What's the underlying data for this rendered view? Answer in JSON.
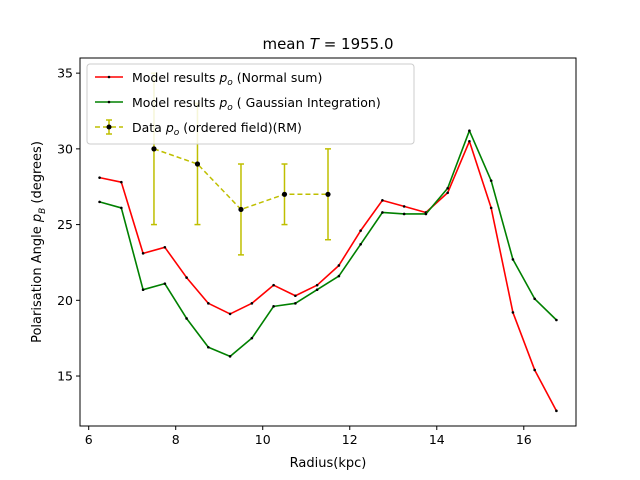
{
  "chart_data": {
    "type": "line",
    "title_prefix": "mean ",
    "title_var": "T",
    "title_suffix": " =  1955.0",
    "xlabel": "Radius(kpc)",
    "ylabel_prefix": "Polarisation Angle ",
    "ylabel_var": "p",
    "ylabel_sub": "B",
    "ylabel_suffix": " (degrees)",
    "xlim": [
      5.8,
      17.2
    ],
    "ylim": [
      11.7,
      36.0
    ],
    "xticks": [
      6,
      8,
      10,
      12,
      14,
      16
    ],
    "yticks": [
      15,
      20,
      25,
      30,
      35
    ],
    "grid": false,
    "legend_position": "upper-left",
    "series": [
      {
        "name": "Model results p_o (Normal sum)",
        "legend_prefix": "Model results ",
        "legend_var": "p",
        "legend_sub": "o",
        "legend_suffix": " (Normal sum)",
        "color": "#ff0000",
        "x": [
          6.25,
          6.75,
          7.25,
          7.75,
          8.25,
          8.75,
          9.25,
          9.75,
          10.25,
          10.75,
          11.25,
          11.75,
          12.25,
          12.75,
          13.25,
          13.75,
          14.25,
          14.75,
          15.25,
          15.75,
          16.25,
          16.75
        ],
        "y": [
          28.1,
          27.8,
          23.1,
          23.5,
          21.5,
          19.8,
          19.1,
          19.8,
          21.0,
          20.3,
          21.0,
          22.3,
          24.6,
          26.6,
          26.2,
          25.8,
          27.1,
          30.5,
          26.1,
          19.2,
          15.4,
          12.7
        ]
      },
      {
        "name": "Model results p_o ( Gaussian Integration)",
        "legend_prefix": "Model results ",
        "legend_var": "p",
        "legend_sub": "o",
        "legend_suffix": " ( Gaussian Integration)",
        "color": "#008000",
        "x": [
          6.25,
          6.75,
          7.25,
          7.75,
          8.25,
          8.75,
          9.25,
          9.75,
          10.25,
          10.75,
          11.25,
          11.75,
          12.25,
          12.75,
          13.25,
          13.75,
          14.25,
          14.75,
          15.25,
          15.75,
          16.25,
          16.75
        ],
        "y": [
          26.5,
          26.1,
          20.7,
          21.1,
          18.8,
          16.9,
          16.3,
          17.5,
          19.6,
          19.8,
          20.7,
          21.6,
          23.7,
          25.8,
          25.7,
          25.7,
          27.4,
          31.2,
          27.9,
          22.7,
          20.1,
          18.7
        ]
      }
    ],
    "errorbar_series": {
      "name": "Data p_o (ordered field)(RM)",
      "legend_prefix": "Data ",
      "legend_var": "p",
      "legend_sub": "o",
      "legend_suffix": " (ordered field)(RM)",
      "color": "#bfbf00",
      "x": [
        7.5,
        8.5,
        9.5,
        10.5,
        11.5
      ],
      "y": [
        30,
        29,
        26,
        27,
        27
      ],
      "lower": [
        25,
        25,
        23,
        25,
        24
      ],
      "upper": [
        35,
        33,
        29,
        29,
        30
      ]
    }
  }
}
